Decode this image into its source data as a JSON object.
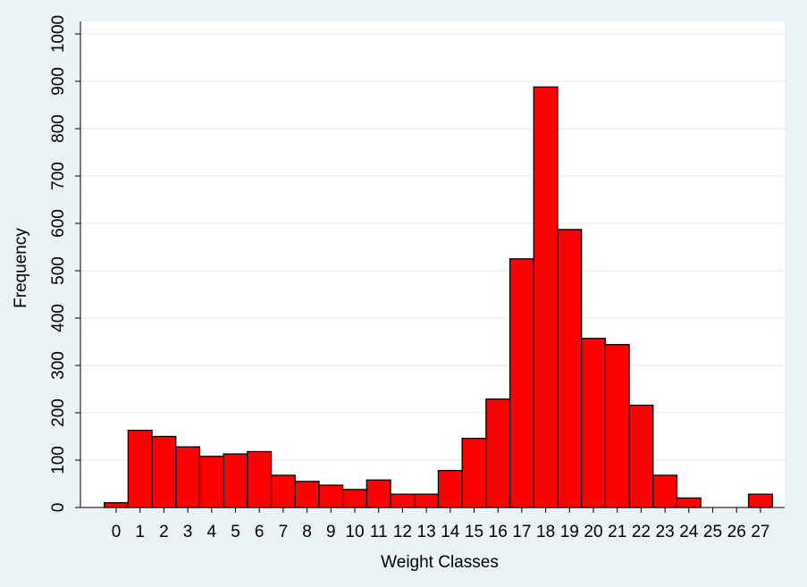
{
  "chart_data": {
    "type": "bar",
    "x_label": "Weight Classes",
    "y_label": "Frequency",
    "categories": [
      "0",
      "1",
      "2",
      "3",
      "4",
      "5",
      "6",
      "7",
      "8",
      "9",
      "10",
      "11",
      "12",
      "13",
      "14",
      "15",
      "16",
      "17",
      "18",
      "19",
      "20",
      "21",
      "22",
      "23",
      "24",
      "25",
      "26",
      "27"
    ],
    "values": [
      10,
      163,
      150,
      128,
      108,
      113,
      118,
      68,
      55,
      47,
      38,
      58,
      28,
      28,
      78,
      146,
      229,
      525,
      888,
      587,
      357,
      344,
      216,
      68,
      20,
      0,
      0,
      28
    ],
    "color": "#ff0000",
    "ylim": [
      0,
      1000
    ],
    "yticks": [
      0,
      100,
      200,
      300,
      400,
      500,
      600,
      700,
      800,
      900,
      1000
    ],
    "grid": true
  }
}
